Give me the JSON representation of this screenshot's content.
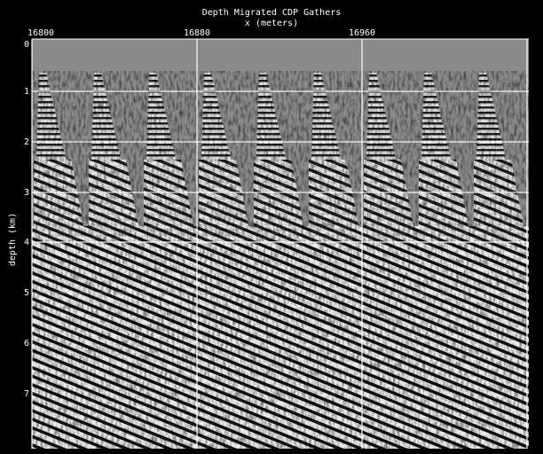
{
  "header": {
    "title": "Depth Migrated CDP Gathers",
    "subtitle": "x (meters)"
  },
  "x_axis": {
    "labels": [
      "16800",
      "16880",
      "16960"
    ]
  },
  "y_axis": {
    "title": "depth (km)",
    "labels": [
      "0",
      "1",
      "2",
      "3",
      "4",
      "5",
      "6",
      "7"
    ]
  }
}
